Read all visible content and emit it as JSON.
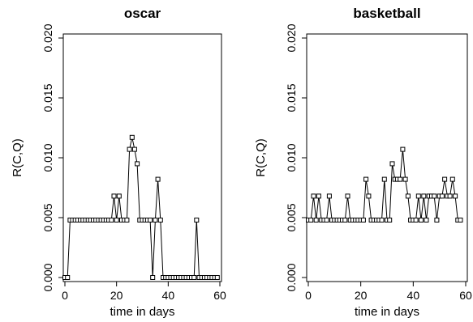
{
  "chart_data": [
    {
      "type": "line",
      "title": "oscar",
      "xlabel": "time in days",
      "ylabel": "R(C,Q)",
      "xlim": [
        0,
        60
      ],
      "ylim": [
        0,
        0.02
      ],
      "xticks": [
        "0",
        "20",
        "40",
        "60"
      ],
      "yticks": [
        "0.000",
        "0.005",
        "0.010",
        "0.015",
        "0.020"
      ],
      "grid": false,
      "marker": "open-square",
      "x": [
        0,
        1,
        2,
        3,
        4,
        5,
        6,
        7,
        8,
        9,
        10,
        11,
        12,
        13,
        14,
        15,
        16,
        17,
        18,
        19,
        20,
        21,
        22,
        23,
        24,
        25,
        26,
        27,
        28,
        29,
        30,
        31,
        32,
        33,
        34,
        35,
        36,
        37,
        38,
        39,
        40,
        41,
        42,
        43,
        44,
        45,
        46,
        47,
        48,
        49,
        50,
        51,
        52,
        53,
        54,
        55,
        56,
        57,
        58,
        59
      ],
      "y": [
        0.0,
        0.0,
        0.0048,
        0.0048,
        0.0048,
        0.0048,
        0.0048,
        0.0048,
        0.0048,
        0.0048,
        0.0048,
        0.0048,
        0.0048,
        0.0048,
        0.0048,
        0.0048,
        0.0048,
        0.0048,
        0.0048,
        0.0068,
        0.0048,
        0.0068,
        0.0048,
        0.0048,
        0.0048,
        0.0107,
        0.0117,
        0.0107,
        0.0095,
        0.0048,
        0.0048,
        0.0048,
        0.0048,
        0.0048,
        0.0,
        0.0048,
        0.0082,
        0.0048,
        0.0,
        0.0,
        0.0,
        0.0,
        0.0,
        0.0,
        0.0,
        0.0,
        0.0,
        0.0,
        0.0,
        0.0,
        0.0,
        0.0048,
        0.0,
        0.0,
        0.0,
        0.0,
        0.0,
        0.0,
        0.0,
        0.0
      ]
    },
    {
      "type": "line",
      "title": "basketball",
      "xlabel": "time in days",
      "ylabel": "R(C,Q)",
      "xlim": [
        0,
        60
      ],
      "ylim": [
        0,
        0.02
      ],
      "xticks": [
        "0",
        "20",
        "40",
        "60"
      ],
      "yticks": [
        "0.000",
        "0.005",
        "0.010",
        "0.015",
        "0.020"
      ],
      "grid": false,
      "marker": "open-square",
      "x": [
        0,
        1,
        2,
        3,
        4,
        5,
        6,
        7,
        8,
        9,
        10,
        11,
        12,
        13,
        14,
        15,
        16,
        17,
        18,
        19,
        20,
        21,
        22,
        23,
        24,
        25,
        26,
        27,
        28,
        29,
        30,
        31,
        32,
        33,
        34,
        35,
        36,
        37,
        38,
        39,
        40,
        41,
        42,
        43,
        44,
        45,
        46,
        47,
        48,
        49,
        50,
        51,
        52,
        53,
        54,
        55,
        56,
        57,
        58
      ],
      "y": [
        0.0048,
        0.0048,
        0.0068,
        0.0048,
        0.0068,
        0.0048,
        0.0048,
        0.0048,
        0.0068,
        0.0048,
        0.0048,
        0.0048,
        0.0048,
        0.0048,
        0.0048,
        0.0068,
        0.0048,
        0.0048,
        0.0048,
        0.0048,
        0.0048,
        0.0048,
        0.0082,
        0.0068,
        0.0048,
        0.0048,
        0.0048,
        0.0048,
        0.0048,
        0.0082,
        0.0048,
        0.0048,
        0.0095,
        0.0082,
        0.0082,
        0.0082,
        0.0107,
        0.0082,
        0.0068,
        0.0048,
        0.0048,
        0.0048,
        0.0068,
        0.0048,
        0.0068,
        0.0048,
        0.0068,
        0.0068,
        0.0068,
        0.0048,
        0.0068,
        0.0068,
        0.0082,
        0.0068,
        0.0068,
        0.0082,
        0.0068,
        0.0048,
        0.0048
      ]
    }
  ]
}
